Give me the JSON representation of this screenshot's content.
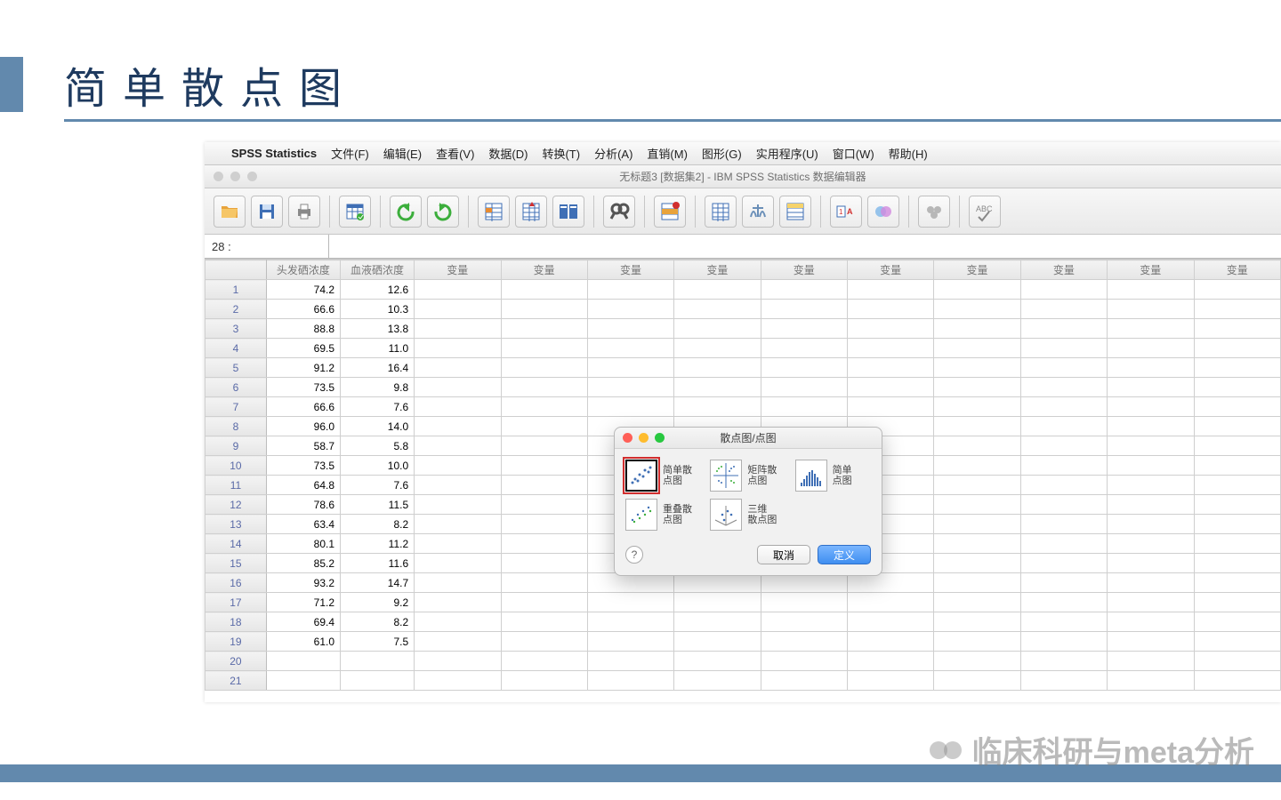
{
  "slide": {
    "title": "简单散点图",
    "accent_color": "#6289ad",
    "title_color": "#1e3a5f",
    "watermark_text": "临床科研与meta分析"
  },
  "menubar": {
    "app_name": "SPSS Statistics",
    "items": [
      "文件(F)",
      "编辑(E)",
      "查看(V)",
      "数据(D)",
      "转换(T)",
      "分析(A)",
      "直销(M)",
      "图形(G)",
      "实用程序(U)",
      "窗口(W)",
      "帮助(H)"
    ]
  },
  "document_title": "无标题3 [数据集2] - IBM SPSS Statistics 数据编辑器",
  "namebox": "28 :",
  "grid": {
    "data_columns": [
      "头发硒浓度",
      "血液硒浓度"
    ],
    "placeholder_header": "变量",
    "placeholder_count": 10,
    "rows": [
      [
        "74.2",
        "12.6"
      ],
      [
        "66.6",
        "10.3"
      ],
      [
        "88.8",
        "13.8"
      ],
      [
        "69.5",
        "11.0"
      ],
      [
        "91.2",
        "16.4"
      ],
      [
        "73.5",
        "9.8"
      ],
      [
        "66.6",
        "7.6"
      ],
      [
        "96.0",
        "14.0"
      ],
      [
        "58.7",
        "5.8"
      ],
      [
        "73.5",
        "10.0"
      ],
      [
        "64.8",
        "7.6"
      ],
      [
        "78.6",
        "11.5"
      ],
      [
        "63.4",
        "8.2"
      ],
      [
        "80.1",
        "11.2"
      ],
      [
        "85.2",
        "11.6"
      ],
      [
        "93.2",
        "14.7"
      ],
      [
        "71.2",
        "9.2"
      ],
      [
        "69.4",
        "8.2"
      ],
      [
        "61.0",
        "7.5"
      ]
    ],
    "empty_row_nums": [
      20,
      21
    ]
  },
  "dialog": {
    "title": "散点图/点图",
    "options": [
      {
        "label_l1": "简单散",
        "label_l2": "点图",
        "selected": true,
        "kind": "simple"
      },
      {
        "label_l1": "矩阵散",
        "label_l2": "点图",
        "selected": false,
        "kind": "matrix"
      },
      {
        "label_l1": "简单",
        "label_l2": "点图",
        "selected": false,
        "kind": "dot"
      },
      {
        "label_l1": "重叠散",
        "label_l2": "点图",
        "selected": false,
        "kind": "overlay"
      },
      {
        "label_l1": "三维",
        "label_l2": "散点图",
        "selected": false,
        "kind": "3d"
      }
    ],
    "cancel_label": "取消",
    "define_label": "定义"
  },
  "toolbar_icons": [
    "open-icon",
    "save-icon",
    "print-icon",
    "|",
    "dataset-icon",
    "|",
    "undo-icon",
    "redo-icon",
    "|",
    "goto-case-icon",
    "goto-var-icon",
    "variables-icon",
    "|",
    "find-icon",
    "|",
    "insert-case-icon",
    "|",
    "split-icon",
    "weight-icon",
    "select-icon",
    "|",
    "value-labels-icon",
    "use-sets-icon",
    "|",
    "show-all-icon",
    "|",
    "spellcheck-icon"
  ]
}
